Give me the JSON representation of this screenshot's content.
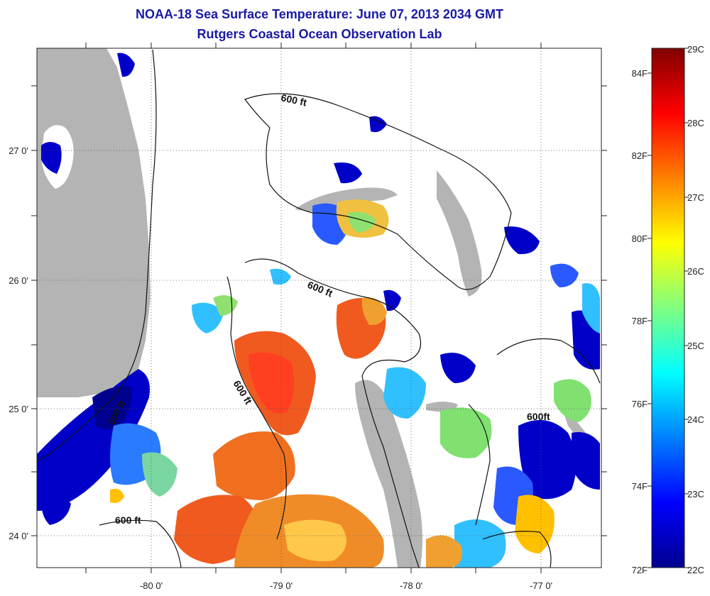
{
  "title": {
    "line1": "NOAA-18 Sea Surface Temperature:  June 07, 2013 2034 GMT",
    "line2": "Rutgers Coastal Ocean Observation Lab"
  },
  "axes": {
    "lon_labels": [
      "-80 0'",
      "-79 0'",
      "-78 0'",
      "-77 0'"
    ],
    "lat_labels": [
      "27 0'",
      "26 0'",
      "25 0'",
      "24 0'"
    ]
  },
  "contour_labels": [
    "600 ft",
    "600 ft",
    "600 ft",
    "600 ft",
    "600ft",
    "600 ft"
  ],
  "colorbar": {
    "celsius_labels": [
      "29C",
      "28C",
      "27C",
      "26C",
      "25C",
      "24C",
      "23C",
      "22C"
    ],
    "fahrenheit_labels": [
      "84F",
      "82F",
      "80F",
      "78F",
      "76F",
      "74F",
      "72F"
    ],
    "colors": [
      "#00008f",
      "#0000ff",
      "#0080ff",
      "#00ffff",
      "#80ff80",
      "#ffff00",
      "#ff8000",
      "#ff0000",
      "#800000"
    ]
  },
  "legend_colors": {
    "land": "#b4b4b4",
    "no_data": "#ffffff"
  }
}
